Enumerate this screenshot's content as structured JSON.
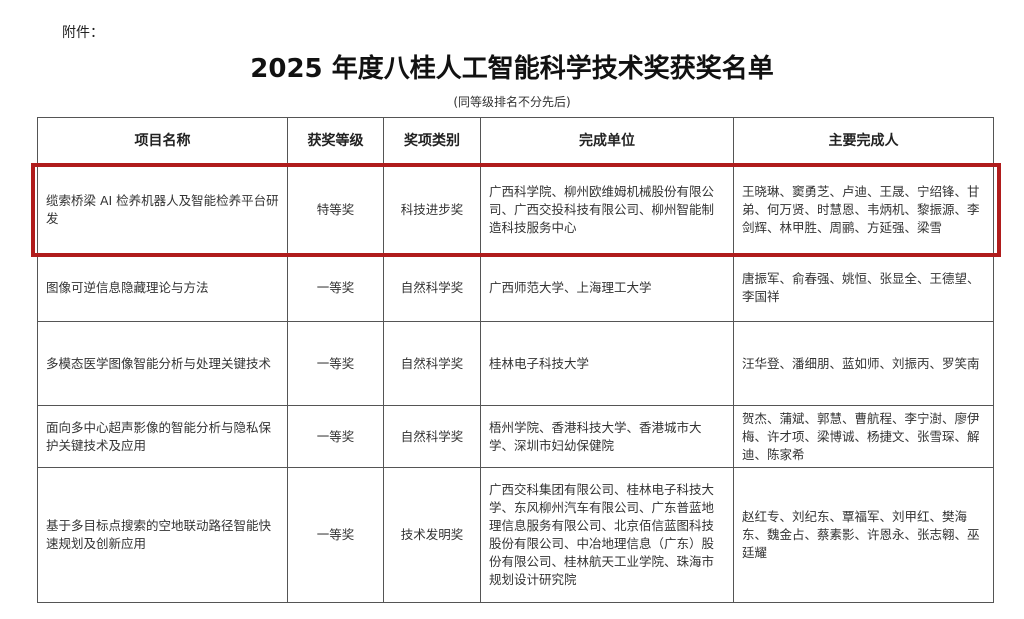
{
  "attachment_label": "附件：",
  "title": "2025 年度八桂人工智能科学技术奖获奖名单",
  "subtitle": "(同等级排名不分先后)",
  "highlight_color": "#b01c1c",
  "table": {
    "headers": [
      "项目名称",
      "获奖等级",
      "奖项类别",
      "完成单位",
      "主要完成人"
    ],
    "rows": [
      {
        "project": "缆索桥梁 AI 检养机器人及智能检养平台研发",
        "level": "特等奖",
        "category": "科技进步奖",
        "units": "广西科学院、柳州欧维姆机械股份有限公司、广西交投科技有限公司、柳州智能制造科技服务中心",
        "people": "王晓琳、窦勇芝、卢迪、王晟、宁绍锋、甘弟、何万贤、时慧恩、韦炳机、黎振源、李剑辉、林甲胜、周鹂、方延强、梁雪",
        "highlighted": true
      },
      {
        "project": "图像可逆信息隐藏理论与方法",
        "level": "一等奖",
        "category": "自然科学奖",
        "units": "广西师范大学、上海理工大学",
        "people": "唐振军、俞春强、姚恒、张显全、王德望、李国祥"
      },
      {
        "project": "多模态医学图像智能分析与处理关键技术",
        "level": "一等奖",
        "category": "自然科学奖",
        "units": "桂林电子科技大学",
        "people": "汪华登、潘细朋、蓝如师、刘振丙、罗笑南"
      },
      {
        "project": "面向多中心超声影像的智能分析与隐私保护关键技术及应用",
        "level": "一等奖",
        "category": "自然科学奖",
        "units": "梧州学院、香港科技大学、香港城市大学、深圳市妇幼保健院",
        "people": "贺杰、蒲斌、郭慧、曹航程、李宁澍、廖伊梅、许才项、梁博诚、杨捷文、张雪琛、解迪、陈家希"
      },
      {
        "project": "基于多目标点搜索的空地联动路径智能快速规划及创新应用",
        "level": "一等奖",
        "category": "技术发明奖",
        "units": "广西交科集团有限公司、桂林电子科技大学、东风柳州汽车有限公司、广东普蓝地理信息服务有限公司、北京佰信蓝图科技股份有限公司、中冶地理信息（广东）股份有限公司、桂林航天工业学院、珠海市规划设计研究院",
        "people": "赵红专、刘纪东、覃福军、刘甲红、樊海东、魏金占、蔡素影、许恩永、张志翱、巫廷耀"
      }
    ]
  }
}
